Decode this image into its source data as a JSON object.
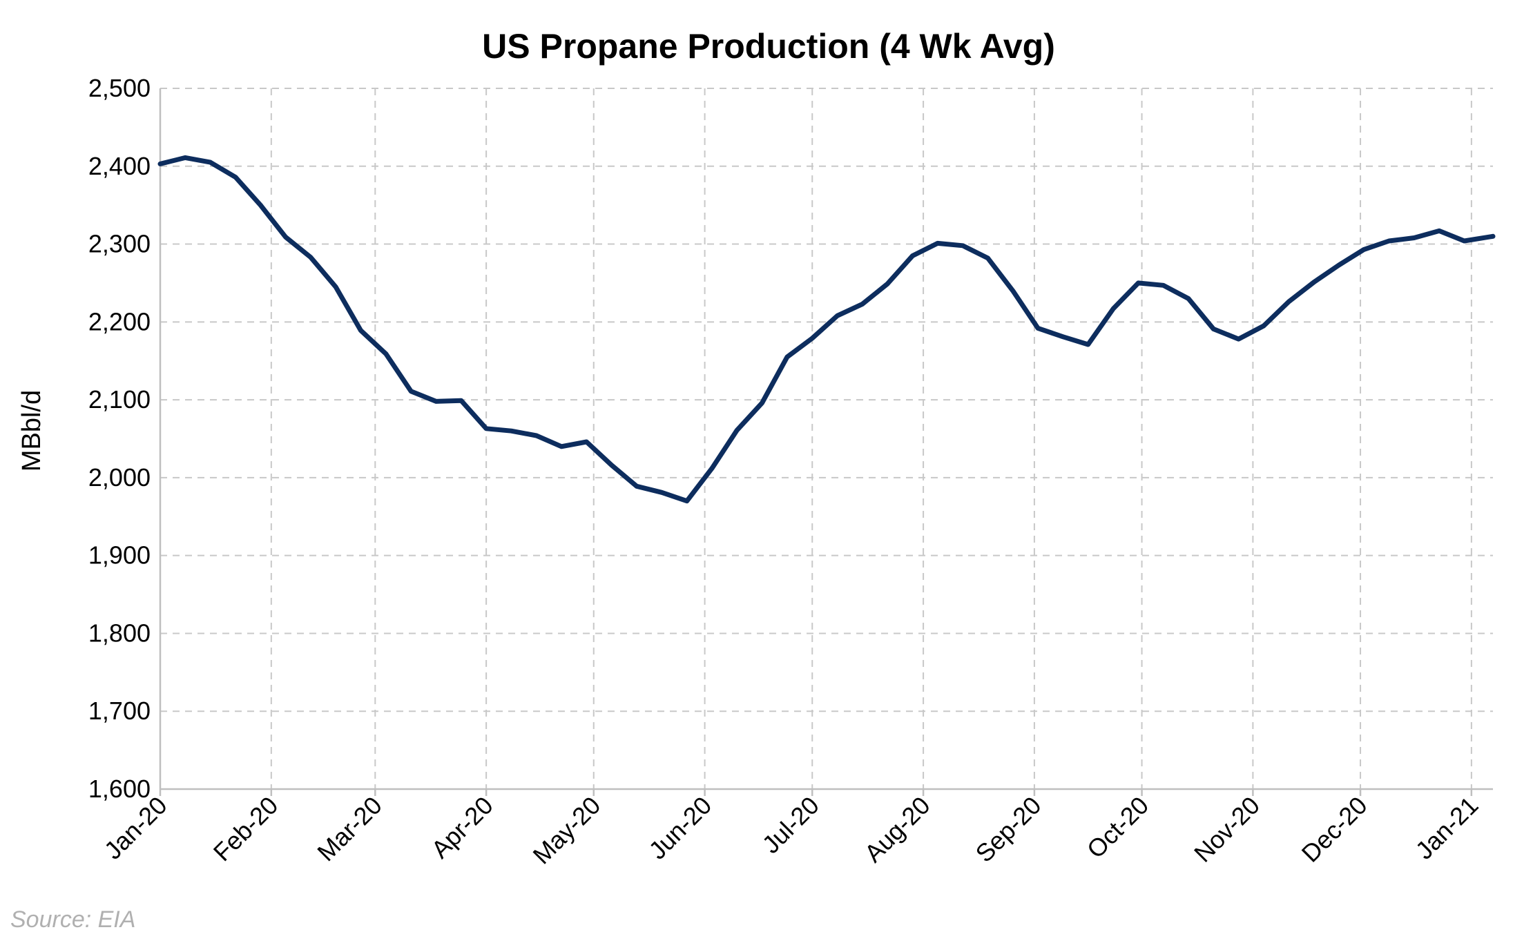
{
  "source_note": "Source: EIA",
  "colors": {
    "series": "#0d2d5e",
    "grid": "#c8c8c8",
    "axis": "#bfbfbf",
    "source": "#b0b0b0"
  },
  "chart_data": {
    "type": "line",
    "title": "US Propane Production (4 Wk Avg)",
    "xlabel": "",
    "ylabel": "MBbl/d",
    "ylim": [
      1600,
      2500
    ],
    "y_ticks": [
      1600,
      1700,
      1800,
      1900,
      2000,
      2100,
      2200,
      2300,
      2400,
      2500
    ],
    "y_tick_labels": [
      "1,600",
      "1,700",
      "1,800",
      "1,900",
      "2,000",
      "2,100",
      "2,200",
      "2,300",
      "2,400",
      "2,500"
    ],
    "xlim": [
      "2020-01-01",
      "2021-01-07"
    ],
    "x_tick_dates": [
      "2020-01-01",
      "2020-02-01",
      "2020-03-01",
      "2020-04-01",
      "2020-05-01",
      "2020-06-01",
      "2020-07-01",
      "2020-08-01",
      "2020-09-01",
      "2020-10-01",
      "2020-11-01",
      "2020-12-01",
      "2021-01-01"
    ],
    "x_tick_labels": [
      "Jan-20",
      "Feb-20",
      "Mar-20",
      "Apr-20",
      "May-20",
      "Jun-20",
      "Jul-20",
      "Aug-20",
      "Sep-20",
      "Oct-20",
      "Nov-20",
      "Dec-20",
      "Jan-21"
    ],
    "grid": true,
    "legend": "none",
    "series": [
      {
        "color": "#0d2d5e",
        "x": [
          "2020-01-01",
          "2020-01-08",
          "2020-01-15",
          "2020-01-22",
          "2020-01-29",
          "2020-02-05",
          "2020-02-12",
          "2020-02-19",
          "2020-02-26",
          "2020-03-04",
          "2020-03-11",
          "2020-03-18",
          "2020-03-25",
          "2020-04-01",
          "2020-04-08",
          "2020-04-15",
          "2020-04-22",
          "2020-04-29",
          "2020-05-06",
          "2020-05-13",
          "2020-05-20",
          "2020-05-27",
          "2020-06-03",
          "2020-06-10",
          "2020-06-17",
          "2020-06-24",
          "2020-07-01",
          "2020-07-08",
          "2020-07-15",
          "2020-07-22",
          "2020-07-29",
          "2020-08-05",
          "2020-08-12",
          "2020-08-19",
          "2020-08-26",
          "2020-09-02",
          "2020-09-09",
          "2020-09-16",
          "2020-09-23",
          "2020-09-30",
          "2020-10-07",
          "2020-10-14",
          "2020-10-21",
          "2020-10-28",
          "2020-11-04",
          "2020-11-11",
          "2020-11-18",
          "2020-11-25",
          "2020-12-02",
          "2020-12-09",
          "2020-12-16",
          "2020-12-23",
          "2020-12-30",
          "2021-01-07"
        ],
        "values": [
          2403,
          2411,
          2405,
          2386,
          2350,
          2309,
          2283,
          2245,
          2189,
          2159,
          2111,
          2098,
          2099,
          2063,
          2060,
          2054,
          2040,
          2046,
          2016,
          1989,
          1981,
          1970,
          2012,
          2061,
          2096,
          2155,
          2179,
          2208,
          2223,
          2249,
          2285,
          2301,
          2298,
          2282,
          2240,
          2192,
          2181,
          2171,
          2217,
          2250,
          2247,
          2230,
          2191,
          2178,
          2195,
          2226,
          2251,
          2273,
          2293,
          2304,
          2308,
          2317,
          2304,
          2310
        ]
      }
    ]
  }
}
